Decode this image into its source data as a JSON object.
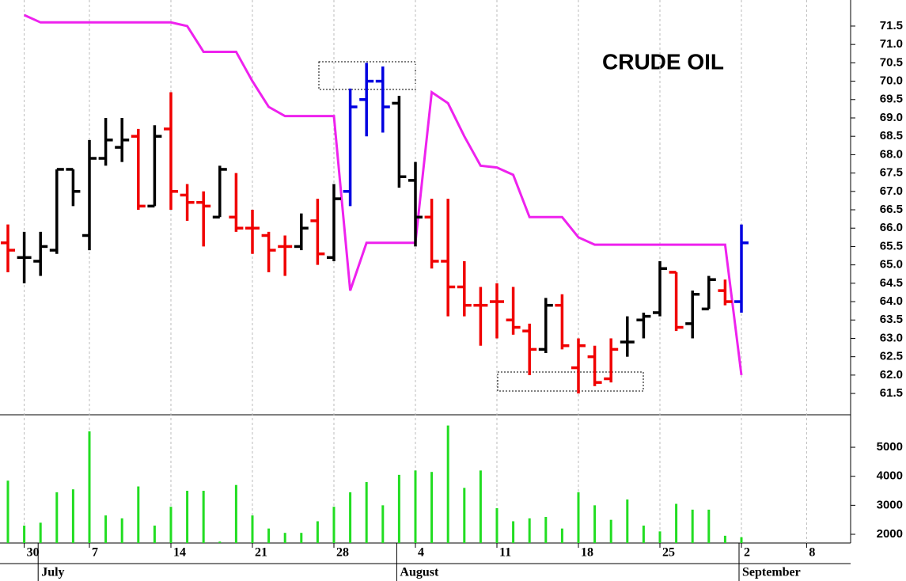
{
  "chart_data": {
    "type": "ohlc",
    "title": "CRUDE OIL",
    "categories": [
      null,
      "30",
      null,
      null,
      null,
      "7",
      null,
      null,
      null,
      null,
      "14",
      null,
      null,
      null,
      null,
      "21",
      null,
      null,
      null,
      null,
      "28",
      null,
      null,
      null,
      null,
      "4",
      null,
      null,
      null,
      null,
      "11",
      null,
      null,
      null,
      null,
      "18",
      null,
      null,
      null,
      null,
      "25",
      null,
      null,
      null,
      null,
      "2",
      null,
      null,
      null,
      "8",
      null,
      null
    ],
    "months": [
      null,
      null,
      "July",
      null,
      null,
      null,
      null,
      null,
      null,
      null,
      null,
      null,
      null,
      null,
      null,
      null,
      null,
      null,
      null,
      null,
      null,
      null,
      null,
      null,
      "August",
      null,
      null,
      null,
      null,
      null,
      null,
      null,
      null,
      null,
      null,
      null,
      null,
      null,
      null,
      null,
      null,
      null,
      null,
      null,
      null,
      "September",
      null,
      null,
      null,
      null,
      null,
      null
    ],
    "ylim": [
      60.92,
      72.21
    ],
    "yticks": [
      61.5,
      {
        "value": 62,
        "label": "62.0"
      },
      62.5,
      {
        "value": 63,
        "label": "63.0"
      },
      63.5,
      {
        "value": 64,
        "label": "64.0"
      },
      64.5,
      {
        "value": 65,
        "label": "65.0"
      },
      65.5,
      {
        "value": 66,
        "label": "66.0"
      },
      66.5,
      {
        "value": 67,
        "label": "67.0"
      },
      67.5,
      {
        "value": 68,
        "label": "68.0"
      },
      68.5,
      {
        "value": 69,
        "label": "69.0"
      },
      69.5,
      {
        "value": 70,
        "label": "70.0"
      },
      70.5,
      {
        "value": 71,
        "label": "71.0"
      },
      71.5
    ],
    "grid": true,
    "bars": {
      "open": [
        65.6,
        65.2,
        65.1,
        65.4,
        67.6,
        65.8,
        67.9,
        68.2,
        68.5,
        66.6,
        68.7,
        66.9,
        66.7,
        66.3,
        66.3,
        66.0,
        65.8,
        65.5,
        65.5,
        66.2,
        65.2,
        67.0,
        69.5,
        70.0,
        69.4,
        67.3,
        66.3,
        65.1,
        64.4,
        63.9,
        64.0,
        63.5,
        63.2,
        62.7,
        63.9,
        62.2,
        62.5,
        61.9,
        62.9,
        63.5,
        63.7,
        64.8,
        63.4,
        63.8,
        64.3,
        64.0,
        null,
        null,
        null,
        null,
        null,
        null
      ],
      "high": [
        66.1,
        65.9,
        65.9,
        67.6,
        67.6,
        68.4,
        69.0,
        69.0,
        68.7,
        68.8,
        69.7,
        67.2,
        67.0,
        67.7,
        67.5,
        66.5,
        65.9,
        65.8,
        66.4,
        66.8,
        67.2,
        69.8,
        70.5,
        70.4,
        69.6,
        67.8,
        66.8,
        66.8,
        65.1,
        64.4,
        64.5,
        64.4,
        63.4,
        64.1,
        64.2,
        63.0,
        62.8,
        63.0,
        63.6,
        63.7,
        65.1,
        64.8,
        64.3,
        64.7,
        64.6,
        66.1,
        null,
        null,
        null,
        null,
        null,
        null
      ],
      "low": [
        64.8,
        64.5,
        64.7,
        65.3,
        66.6,
        65.4,
        67.7,
        67.8,
        66.5,
        66.6,
        66.5,
        66.2,
        65.5,
        66.3,
        65.9,
        65.3,
        64.8,
        64.7,
        65.4,
        65.0,
        65.1,
        66.6,
        68.5,
        68.6,
        67.1,
        65.5,
        64.9,
        63.6,
        63.6,
        62.8,
        63.0,
        63.1,
        62.0,
        62.6,
        62.7,
        61.5,
        61.7,
        61.8,
        62.5,
        63.0,
        63.6,
        63.2,
        63.0,
        63.8,
        63.9,
        63.7,
        null,
        null,
        null,
        null,
        null,
        null
      ],
      "close": [
        65.4,
        65.2,
        65.5,
        67.6,
        67.0,
        67.9,
        68.4,
        68.4,
        66.6,
        68.5,
        67.0,
        66.7,
        66.6,
        67.6,
        66.0,
        66.0,
        65.4,
        65.5,
        66.0,
        65.3,
        66.8,
        69.3,
        70.0,
        69.3,
        67.4,
        66.3,
        65.1,
        64.4,
        63.9,
        63.9,
        64.0,
        63.3,
        62.7,
        63.9,
        62.8,
        62.8,
        61.8,
        62.7,
        62.9,
        63.6,
        64.9,
        63.3,
        64.2,
        64.6,
        64.0,
        65.6,
        null,
        null,
        null,
        null,
        null,
        null
      ],
      "colors": [
        "#f00000",
        "#000000",
        "#000000",
        "#000000",
        "#000000",
        "#000000",
        "#000000",
        "#000000",
        "#f00000",
        "#000000",
        "#f00000",
        "#f00000",
        "#f00000",
        "#000000",
        "#f00000",
        "#f00000",
        "#f00000",
        "#f00000",
        "#000000",
        "#f00000",
        "#000000",
        "#0000e0",
        "#0000e0",
        "#0000e0",
        "#000000",
        "#000000",
        "#f00000",
        "#f00000",
        "#f00000",
        "#f00000",
        "#f00000",
        "#f00000",
        "#f00000",
        "#000000",
        "#f00000",
        "#f00000",
        "#f00000",
        "#f00000",
        "#000000",
        "#000000",
        "#000000",
        "#f00000",
        "#000000",
        "#000000",
        "#f00000",
        "#0000e0",
        null,
        null,
        null,
        null,
        null,
        null
      ]
    },
    "stop": {
      "color": "#ee22ee",
      "values": [
        null,
        71.8,
        71.6,
        71.6,
        71.6,
        71.6,
        71.6,
        71.6,
        71.6,
        71.6,
        71.6,
        71.5,
        70.8,
        70.8,
        70.8,
        70.0,
        69.3,
        69.05,
        69.05,
        69.05,
        69.05,
        64.3,
        65.6,
        65.6,
        65.6,
        65.6,
        69.7,
        69.4,
        68.5,
        67.7,
        67.65,
        67.45,
        66.3,
        66.3,
        66.3,
        65.75,
        65.55,
        65.55,
        65.55,
        65.55,
        65.55,
        65.55,
        65.55,
        65.55,
        65.55,
        62.0,
        null,
        null,
        null,
        null,
        null,
        null
      ]
    },
    "volume": {
      "type": "bar",
      "color": "#22dd22",
      "ylim": [
        1700,
        6120
      ],
      "yticks": [
        2000,
        3000,
        4000,
        5000
      ],
      "values": [
        3850,
        2300,
        2400,
        3450,
        3550,
        5550,
        2650,
        2550,
        3650,
        2300,
        2950,
        3500,
        3500,
        1750,
        3700,
        2650,
        2200,
        2050,
        2050,
        2450,
        2950,
        3450,
        3800,
        3000,
        4050,
        4200,
        4150,
        5750,
        3600,
        4200,
        2900,
        2450,
        2550,
        2600,
        2200,
        3450,
        3000,
        2500,
        3200,
        2300,
        2100,
        3050,
        2850,
        2850,
        1950,
        1900,
        null,
        null,
        null,
        null,
        null,
        null
      ]
    }
  }
}
